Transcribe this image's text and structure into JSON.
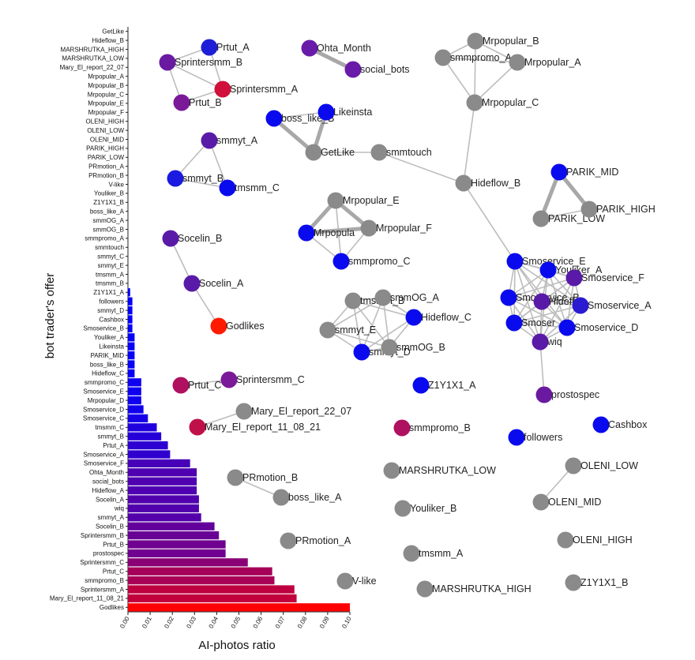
{
  "chart_data": [
    {
      "type": "bar",
      "orientation": "horizontal",
      "xlabel": "AI-photos ratio",
      "ylabel": "bot trader's offer",
      "xlim": [
        0,
        0.1
      ],
      "xticks": [
        "0.00",
        "0.01",
        "0.02",
        "0.03",
        "0.04",
        "0.05",
        "0.06",
        "0.07",
        "0.08",
        "0.09",
        "0.10"
      ],
      "color_scale": {
        "low": "#0000ff",
        "high": "#ff0000"
      },
      "categories": [
        "GetLike",
        "Hideflow_B",
        "MARSHRUTKA_HIGH",
        "MARSHRUTKA_LOW",
        "Mary_El_report_22_07",
        "Mrpopular_A",
        "Mrpopular_B",
        "Mrpopular_C",
        "Mrpopular_E",
        "Mrpopular_F",
        "OLENI_HIGH",
        "OLENI_LOW",
        "OLENI_MID",
        "PARIK_HIGH",
        "PARIK_LOW",
        "PRmotion_A",
        "PRmotion_B",
        "V-like",
        "Youliker_B",
        "Z1Y1X1_B",
        "boss_like_A",
        "smmOG_A",
        "smmOG_B",
        "smmpromo_A",
        "smmtouch",
        "smmyt_C",
        "smmyt_E",
        "tmsmm_A",
        "tmsmm_B",
        "Z1Y1X1_A",
        "followers",
        "smmyt_D",
        "Cashbox",
        "Smoservice_B",
        "Youliker_A",
        "Likeinsta",
        "PARIK_MID",
        "boss_like_B",
        "Hideflow_C",
        "smmpromo_C",
        "Smoservice_E",
        "Mrpopular_D",
        "Smoservice_D",
        "Smoservice_C",
        "tmsmm_C",
        "smmyt_B",
        "Prtut_A",
        "Smoservice_A",
        "Smoservice_F",
        "Ohta_Month",
        "social_bots",
        "Hideflow_A",
        "Socelin_A",
        "wiq",
        "smmyt_A",
        "Socelin_B",
        "Sprintersmm_B",
        "Prtut_B",
        "prostospec",
        "Sprintersmm_C",
        "Prtut_C",
        "smmpromo_B",
        "Sprintersmm_A",
        "Mary_El_report_11_08_21",
        "Godlikes"
      ],
      "values": [
        0,
        0,
        0,
        0,
        0,
        0,
        0,
        0,
        0,
        0,
        0,
        0,
        0,
        0,
        0,
        0,
        0,
        0,
        0,
        0,
        0,
        0,
        0,
        0,
        0,
        0,
        0,
        0,
        0,
        0.001,
        0.002,
        0.002,
        0.002,
        0.002,
        0.003,
        0.003,
        0.003,
        0.003,
        0.003,
        0.006,
        0.006,
        0.006,
        0.007,
        0.009,
        0.013,
        0.015,
        0.018,
        0.019,
        0.028,
        0.031,
        0.031,
        0.031,
        0.032,
        0.032,
        0.033,
        0.039,
        0.041,
        0.044,
        0.044,
        0.054,
        0.065,
        0.066,
        0.075,
        0.076,
        0.1
      ]
    },
    {
      "type": "network",
      "nodes": [
        {
          "id": "Prtut_A",
          "color": "#1e1ed8"
        },
        {
          "id": "Sprintersmm_B",
          "color": "#6a1aa0"
        },
        {
          "id": "Sprintersmm_A",
          "color": "#d0103a"
        },
        {
          "id": "Prtut_B",
          "color": "#7a1a98"
        },
        {
          "id": "Ohta_Month",
          "color": "#6a1aa8"
        },
        {
          "id": "social_bots",
          "color": "#6a1aa8"
        },
        {
          "id": "Mrpopular_B",
          "color": "#8a8a8a"
        },
        {
          "id": "smmpromo_A",
          "color": "#8a8a8a"
        },
        {
          "id": "Mrpopular_A",
          "color": "#8a8a8a"
        },
        {
          "id": "Mrpopular_C",
          "color": "#8a8a8a"
        },
        {
          "id": "boss_like_B",
          "color": "#0a0aee"
        },
        {
          "id": "Likeinsta",
          "color": "#0a0aee"
        },
        {
          "id": "GetLike",
          "color": "#8a8a8a"
        },
        {
          "id": "smmtouch",
          "color": "#8a8a8a"
        },
        {
          "id": "smmyt_A",
          "color": "#5a1aa8"
        },
        {
          "id": "smmyt_B",
          "color": "#1a1ae0"
        },
        {
          "id": "tmsmm_C",
          "color": "#0a0aee"
        },
        {
          "id": "Hideflow_B",
          "color": "#8a8a8a"
        },
        {
          "id": "PARIK_MID",
          "color": "#0a0aee"
        },
        {
          "id": "PARIK_LOW",
          "color": "#8a8a8a"
        },
        {
          "id": "PARIK_HIGH",
          "color": "#8a8a8a"
        },
        {
          "id": "Mrpopular_E",
          "color": "#8a8a8a"
        },
        {
          "id": "Mrpopular_D",
          "color": "#0a0aee"
        },
        {
          "id": "Mrpopular_F",
          "color": "#8a8a8a"
        },
        {
          "id": "smmpromo_C",
          "color": "#0a0aee"
        },
        {
          "id": "Socelin_B",
          "color": "#5a1aa8"
        },
        {
          "id": "Socelin_A",
          "color": "#5a1aa8"
        },
        {
          "id": "Godlikes",
          "color": "#ff1a00"
        },
        {
          "id": "tmsmm_B",
          "color": "#8a8a8a"
        },
        {
          "id": "smmOG_A",
          "color": "#8a8a8a"
        },
        {
          "id": "Hideflow_C",
          "color": "#0a0aee"
        },
        {
          "id": "smmyt_E",
          "color": "#8a8a8a"
        },
        {
          "id": "smmyt_D",
          "color": "#0a0aee"
        },
        {
          "id": "smmOG_B",
          "color": "#8a8a8a"
        },
        {
          "id": "Smoservice_E",
          "color": "#0a0aee"
        },
        {
          "id": "Youliker_A",
          "color": "#0a0aee"
        },
        {
          "id": "Smoservice_F",
          "color": "#5a1aa8"
        },
        {
          "id": "Smoservice_B",
          "color": "#0a0aee"
        },
        {
          "id": "Hideflow_A",
          "color": "#5a1aa8"
        },
        {
          "id": "Smoservice_A",
          "color": "#2a1ad0"
        },
        {
          "id": "Smoservice_C",
          "color": "#0a0aee"
        },
        {
          "id": "Smoservice_D",
          "color": "#0a0aee"
        },
        {
          "id": "wiq",
          "color": "#5a1aa8"
        },
        {
          "id": "prostospec",
          "color": "#6a1aa0"
        },
        {
          "id": "Prtut_C",
          "color": "#b01060"
        },
        {
          "id": "Sprintersmm_C",
          "color": "#7a1a98"
        },
        {
          "id": "Mary_El_report_22_07",
          "color": "#8a8a8a"
        },
        {
          "id": "Mary_El_report_11_08_21",
          "color": "#c01048"
        },
        {
          "id": "Z1Y1X1_A",
          "color": "#0a0aee"
        },
        {
          "id": "smmpromo_B",
          "color": "#b01060"
        },
        {
          "id": "followers",
          "color": "#0a0aee"
        },
        {
          "id": "Cashbox",
          "color": "#0a0aee"
        },
        {
          "id": "PRmotion_B",
          "color": "#8a8a8a"
        },
        {
          "id": "boss_like_A",
          "color": "#8a8a8a"
        },
        {
          "id": "MARSHRUTKA_LOW",
          "color": "#8a8a8a"
        },
        {
          "id": "OLENI_LOW",
          "color": "#8a8a8a"
        },
        {
          "id": "OLENI_MID",
          "color": "#8a8a8a"
        },
        {
          "id": "Youliker_B",
          "color": "#8a8a8a"
        },
        {
          "id": "PRmotion_A",
          "color": "#8a8a8a"
        },
        {
          "id": "OLENI_HIGH",
          "color": "#8a8a8a"
        },
        {
          "id": "tmsmm_A",
          "color": "#8a8a8a"
        },
        {
          "id": "V-like",
          "color": "#8a8a8a"
        },
        {
          "id": "Z1Y1X1_B",
          "color": "#8a8a8a"
        },
        {
          "id": "MARSHRUTKA_HIGH",
          "color": "#8a8a8a"
        }
      ],
      "node_labels": {
        "Prtut_B": "Prtut_B",
        "Mrpopular_D": "Mrpopula",
        "tmsmm_B": "tmsmm_B",
        "smmOG_A": "smmOG_A",
        "smmyt_D": "smmyt_D",
        "Hideflow_A": "Hideflo",
        "Smoservice_B": "Smoservice_B",
        "Smoservice_C": "Smoser",
        "Prtut_C": "Prtut_C",
        "Mary_El_report_11_08_21": "Mary_El_report_11_08_21"
      },
      "edges": [
        [
          "Prtut_A",
          "Sprintersmm_B"
        ],
        [
          "Prtut_A",
          "Sprintersmm_A"
        ],
        [
          "Sprintersmm_B",
          "Sprintersmm_A"
        ],
        [
          "Sprintersmm_B",
          "Prtut_B"
        ],
        [
          "Sprintersmm_A",
          "Prtut_B"
        ],
        [
          "Ohta_Month",
          "social_bots"
        ],
        [
          "Mrpopular_B",
          "smmpromo_A"
        ],
        [
          "Mrpopular_B",
          "Mrpopular_A"
        ],
        [
          "Mrpopular_B",
          "Mrpopular_C"
        ],
        [
          "smmpromo_A",
          "Mrpopular_A"
        ],
        [
          "smmpromo_A",
          "Mrpopular_C"
        ],
        [
          "Mrpopular_A",
          "Mrpopular_C"
        ],
        [
          "Mrpopular_C",
          "Hideflow_B"
        ],
        [
          "boss_like_B",
          "Likeinsta"
        ],
        [
          "boss_like_B",
          "GetLike"
        ],
        [
          "Likeinsta",
          "GetLike"
        ],
        [
          "GetLike",
          "smmtouch"
        ],
        [
          "smmtouch",
          "Hideflow_B"
        ],
        [
          "smmyt_A",
          "smmyt_B"
        ],
        [
          "smmyt_A",
          "tmsmm_C"
        ],
        [
          "smmyt_B",
          "tmsmm_C"
        ],
        [
          "PARIK_MID",
          "PARIK_LOW"
        ],
        [
          "PARIK_MID",
          "PARIK_HIGH"
        ],
        [
          "PARIK_LOW",
          "PARIK_HIGH"
        ],
        [
          "Mrpopular_E",
          "Mrpopular_D"
        ],
        [
          "Mrpopular_E",
          "Mrpopular_F"
        ],
        [
          "Mrpopular_E",
          "smmpromo_C"
        ],
        [
          "Mrpopular_D",
          "Mrpopular_F"
        ],
        [
          "Mrpopular_D",
          "smmpromo_C"
        ],
        [
          "Mrpopular_F",
          "smmpromo_C"
        ],
        [
          "Socelin_B",
          "Socelin_A"
        ],
        [
          "Socelin_A",
          "Godlikes"
        ],
        [
          "tmsmm_B",
          "smmOG_A"
        ],
        [
          "tmsmm_B",
          "smmyt_E"
        ],
        [
          "tmsmm_B",
          "smmyt_D"
        ],
        [
          "tmsmm_B",
          "smmOG_B"
        ],
        [
          "tmsmm_B",
          "Hideflow_C"
        ],
        [
          "smmOG_A",
          "Hideflow_C"
        ],
        [
          "smmOG_A",
          "smmyt_E"
        ],
        [
          "smmOG_A",
          "smmOG_B"
        ],
        [
          "smmOG_A",
          "smmyt_D"
        ],
        [
          "smmyt_E",
          "smmyt_D"
        ],
        [
          "smmyt_E",
          "smmOG_B"
        ],
        [
          "smmyt_D",
          "smmOG_B"
        ],
        [
          "smmyt_D",
          "Hideflow_C"
        ],
        [
          "smmOG_B",
          "Hideflow_C"
        ],
        [
          "Hideflow_B",
          "Smoservice_E"
        ],
        [
          "Smoservice_E",
          "Youliker_A"
        ],
        [
          "Smoservice_E",
          "Smoservice_F"
        ],
        [
          "Smoservice_E",
          "Smoservice_B"
        ],
        [
          "Smoservice_E",
          "Hideflow_A"
        ],
        [
          "Smoservice_E",
          "Smoservice_A"
        ],
        [
          "Smoservice_E",
          "Smoservice_C"
        ],
        [
          "Smoservice_E",
          "Smoservice_D"
        ],
        [
          "Smoservice_E",
          "wiq"
        ],
        [
          "Youliker_A",
          "Smoservice_F"
        ],
        [
          "Youliker_A",
          "Smoservice_B"
        ],
        [
          "Youliker_A",
          "Hideflow_A"
        ],
        [
          "Youliker_A",
          "Smoservice_A"
        ],
        [
          "Youliker_A",
          "Smoservice_C"
        ],
        [
          "Youliker_A",
          "Smoservice_D"
        ],
        [
          "Youliker_A",
          "wiq"
        ],
        [
          "Smoservice_F",
          "Smoservice_B"
        ],
        [
          "Smoservice_F",
          "Hideflow_A"
        ],
        [
          "Smoservice_F",
          "Smoservice_A"
        ],
        [
          "Smoservice_F",
          "Smoservice_C"
        ],
        [
          "Smoservice_F",
          "Smoservice_D"
        ],
        [
          "Smoservice_F",
          "wiq"
        ],
        [
          "Smoservice_B",
          "Hideflow_A"
        ],
        [
          "Smoservice_B",
          "Smoservice_A"
        ],
        [
          "Smoservice_B",
          "Smoservice_C"
        ],
        [
          "Smoservice_B",
          "Smoservice_D"
        ],
        [
          "Smoservice_B",
          "wiq"
        ],
        [
          "Hideflow_A",
          "Smoservice_A"
        ],
        [
          "Hideflow_A",
          "Smoservice_C"
        ],
        [
          "Hideflow_A",
          "Smoservice_D"
        ],
        [
          "Hideflow_A",
          "wiq"
        ],
        [
          "Smoservice_A",
          "Smoservice_C"
        ],
        [
          "Smoservice_A",
          "Smoservice_D"
        ],
        [
          "Smoservice_A",
          "wiq"
        ],
        [
          "Smoservice_C",
          "Smoservice_D"
        ],
        [
          "Smoservice_C",
          "wiq"
        ],
        [
          "Smoservice_D",
          "wiq"
        ],
        [
          "wiq",
          "prostospec"
        ],
        [
          "Prtut_C",
          "Sprintersmm_C"
        ],
        [
          "Mary_El_report_22_07",
          "Mary_El_report_11_08_21"
        ],
        [
          "PRmotion_B",
          "boss_like_A"
        ],
        [
          "OLENI_LOW",
          "OLENI_MID"
        ]
      ],
      "thick_edges": [
        [
          "Ohta_Month",
          "social_bots"
        ],
        [
          "boss_like_B",
          "GetLike"
        ],
        [
          "Likeinsta",
          "GetLike"
        ],
        [
          "Mrpopular_E",
          "Mrpopular_D"
        ],
        [
          "Mrpopular_D",
          "Mrpopular_F"
        ],
        [
          "Mrpopular_E",
          "Mrpopular_F"
        ],
        [
          "PARIK_MID",
          "PARIK_HIGH"
        ],
        [
          "PARIK_MID",
          "PARIK_LOW"
        ]
      ]
    }
  ]
}
